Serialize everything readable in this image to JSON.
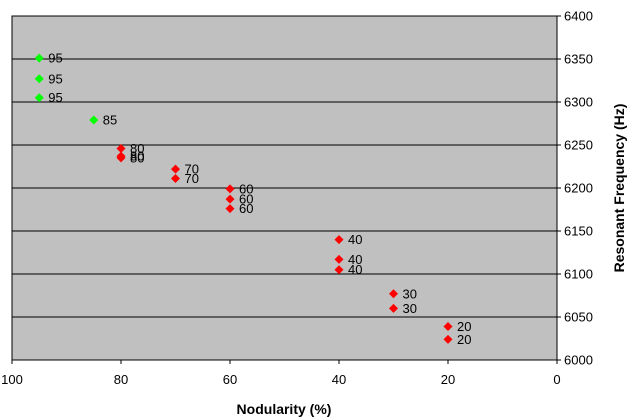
{
  "chart_data": {
    "type": "scatter",
    "title": "",
    "xlabel": "Nodularity (%)",
    "ylabel": "Resonant Frequency (Hz)",
    "xlim": [
      100,
      0
    ],
    "ylim": [
      6000,
      6400
    ],
    "x_reversed": true,
    "x_ticks": [
      "100",
      "80",
      "60",
      "40",
      "20",
      "0"
    ],
    "y_ticks": [
      "6400",
      "6350",
      "6300",
      "6250",
      "6200",
      "6150",
      "6100",
      "6050",
      "6000"
    ],
    "y_axis_side": "right",
    "grid": "horizontal",
    "plot_background": "#c0c0c0",
    "point_colors": {
      "green": "#00ff00",
      "red": "#ff0000"
    },
    "points": [
      {
        "x": 95,
        "y": 6351,
        "label": "95",
        "color": "green"
      },
      {
        "x": 95,
        "y": 6327,
        "label": "95",
        "color": "green"
      },
      {
        "x": 95,
        "y": 6305,
        "label": "95",
        "color": "green"
      },
      {
        "x": 85,
        "y": 6279,
        "label": "85",
        "color": "green"
      },
      {
        "x": 80,
        "y": 6246,
        "label": "80",
        "color": "red"
      },
      {
        "x": 80,
        "y": 6237,
        "label": "80",
        "color": "red"
      },
      {
        "x": 80,
        "y": 6235,
        "label": "80",
        "color": "red"
      },
      {
        "x": 70,
        "y": 6222,
        "label": "70",
        "color": "red"
      },
      {
        "x": 70,
        "y": 6211,
        "label": "70",
        "color": "red"
      },
      {
        "x": 60,
        "y": 6199,
        "label": "60",
        "color": "red"
      },
      {
        "x": 60,
        "y": 6187,
        "label": "60",
        "color": "red"
      },
      {
        "x": 60,
        "y": 6176,
        "label": "60",
        "color": "red"
      },
      {
        "x": 40,
        "y": 6140,
        "label": "40",
        "color": "red"
      },
      {
        "x": 40,
        "y": 6117,
        "label": "40",
        "color": "red"
      },
      {
        "x": 40,
        "y": 6105,
        "label": "40",
        "color": "red"
      },
      {
        "x": 30,
        "y": 6077,
        "label": "30",
        "color": "red"
      },
      {
        "x": 30,
        "y": 6060,
        "label": "30",
        "color": "red"
      },
      {
        "x": 20,
        "y": 6039,
        "label": "20",
        "color": "red"
      },
      {
        "x": 20,
        "y": 6024,
        "label": "20",
        "color": "red"
      }
    ]
  }
}
